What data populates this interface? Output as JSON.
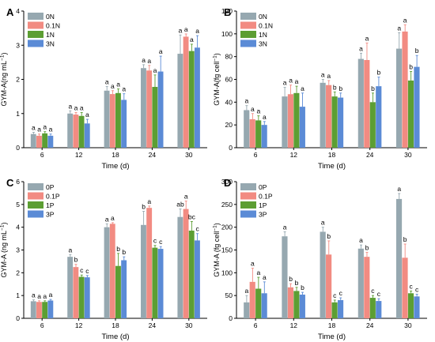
{
  "chart_data": [
    {
      "panel_label": "A",
      "type": "bar",
      "xlabel": "Time (d)",
      "ylabel": "GYM-A(ng mL",
      "ylabel_sup": "−1",
      "ylabel_tail": ")",
      "categories": [
        "6",
        "12",
        "18",
        "24",
        "30"
      ],
      "ylim": [
        0,
        4
      ],
      "yticks": [
        "0",
        "1",
        "2",
        "3",
        "4"
      ],
      "series": [
        {
          "name": "0N",
          "color": "#96a8b0",
          "values": [
            0.4,
            1.0,
            1.67,
            2.33,
            2.75
          ],
          "errors": [
            0.05,
            0.08,
            0.12,
            0.1,
            0.55
          ],
          "letters": [
            "a",
            "a",
            "a",
            "a",
            "a"
          ]
        },
        {
          "name": "0.1N",
          "color": "#f28b82",
          "values": [
            0.35,
            0.97,
            1.57,
            2.26,
            3.25
          ],
          "errors": [
            0.05,
            0.06,
            0.1,
            0.15,
            0.08
          ],
          "letters": [
            "a",
            "a",
            "a",
            "a",
            "a"
          ]
        },
        {
          "name": "1N",
          "color": "#5c9e33",
          "values": [
            0.42,
            0.93,
            1.6,
            1.78,
            2.83
          ],
          "errors": [
            0.05,
            0.1,
            0.12,
            0.35,
            0.2
          ],
          "letters": [
            "a",
            "a",
            "a",
            "a",
            "a"
          ]
        },
        {
          "name": "3N",
          "color": "#5b8bd6",
          "values": [
            0.35,
            0.71,
            1.4,
            2.23,
            2.93
          ],
          "errors": [
            0.05,
            0.12,
            0.18,
            0.45,
            0.35
          ],
          "letters": [
            "a",
            "a",
            "a",
            "a",
            "a"
          ]
        }
      ]
    },
    {
      "panel_label": "B",
      "type": "bar",
      "xlabel": "Time (d)",
      "ylabel": "GYM-A(fg cell",
      "ylabel_sup": "−1",
      "ylabel_tail": ")",
      "categories": [
        "6",
        "12",
        "18",
        "24",
        "30"
      ],
      "ylim": [
        0,
        120
      ],
      "yticks": [
        "0",
        "20",
        "40",
        "60",
        "80",
        "100",
        "120"
      ],
      "series": [
        {
          "name": "0N",
          "color": "#96a8b0",
          "values": [
            33,
            45,
            57,
            78,
            87
          ],
          "errors": [
            4,
            8,
            3,
            5,
            14
          ],
          "letters": [
            "a",
            "a",
            "a",
            "a",
            "a"
          ]
        },
        {
          "name": "0.1N",
          "color": "#f28b82",
          "values": [
            25,
            47,
            55,
            77,
            102
          ],
          "errors": [
            5,
            8,
            4,
            15,
            6
          ],
          "letters": [
            "a",
            "a",
            "a",
            "a",
            "a"
          ]
        },
        {
          "name": "1N",
          "color": "#5c9e33",
          "values": [
            24,
            48,
            45,
            40,
            59
          ],
          "errors": [
            4,
            6,
            4,
            8,
            8
          ],
          "letters": [
            "a",
            "a",
            "b",
            "b",
            "b"
          ]
        },
        {
          "name": "3N",
          "color": "#5b8bd6",
          "values": [
            20,
            36,
            44,
            54,
            71
          ],
          "errors": [
            3,
            12,
            4,
            8,
            10
          ],
          "letters": [
            "a",
            "a",
            "b",
            "b",
            "b"
          ]
        }
      ]
    },
    {
      "panel_label": "C",
      "type": "bar",
      "xlabel": "Time (d)",
      "ylabel": "GYM-A (ng mL",
      "ylabel_sup": "−1",
      "ylabel_tail": ")",
      "categories": [
        "6",
        "12",
        "18",
        "24",
        "30"
      ],
      "ylim": [
        0,
        6
      ],
      "yticks": [
        "0",
        "1",
        "2",
        "3",
        "4",
        "5",
        "6"
      ],
      "series": [
        {
          "name": "0P",
          "color": "#96a8b0",
          "values": [
            0.75,
            2.7,
            4.0,
            4.1,
            4.45
          ],
          "errors": [
            0.06,
            0.1,
            0.15,
            0.6,
            0.35
          ],
          "letters": [
            "a",
            "a",
            "a",
            "b",
            "ab"
          ]
        },
        {
          "name": "0.1P",
          "color": "#f28b82",
          "values": [
            0.72,
            2.25,
            4.15,
            4.85,
            4.8
          ],
          "errors": [
            0.05,
            0.12,
            0.05,
            0.08,
            0.35
          ],
          "letters": [
            "a",
            "b",
            "a",
            "a",
            "a"
          ]
        },
        {
          "name": "1P",
          "color": "#5c9e33",
          "values": [
            0.72,
            1.82,
            2.3,
            3.1,
            3.85
          ],
          "errors": [
            0.05,
            0.08,
            0.55,
            0.1,
            0.4
          ],
          "letters": [
            "a",
            "c",
            "b",
            "c",
            "bc"
          ]
        },
        {
          "name": "3P",
          "color": "#5b8bd6",
          "values": [
            0.78,
            1.8,
            2.55,
            3.05,
            3.42
          ],
          "errors": [
            0.05,
            0.08,
            0.15,
            0.1,
            0.3
          ],
          "letters": [
            "a",
            "c",
            "b",
            "c",
            "c"
          ]
        }
      ]
    },
    {
      "panel_label": "D",
      "type": "bar",
      "xlabel": "Time (d)",
      "ylabel": "GYM-A (fg cell",
      "ylabel_sup": "−1",
      "ylabel_tail": ")",
      "categories": [
        "6",
        "12",
        "18",
        "24",
        "30"
      ],
      "ylim": [
        0,
        300
      ],
      "yticks": [
        "0",
        "50",
        "100",
        "150",
        "200",
        "250",
        "300"
      ],
      "series": [
        {
          "name": "0P",
          "color": "#96a8b0",
          "values": [
            35,
            180,
            190,
            153,
            262
          ],
          "errors": [
            15,
            10,
            10,
            8,
            12
          ],
          "letters": [
            "a",
            "a",
            "a",
            "a",
            "a"
          ]
        },
        {
          "name": "0.1P",
          "color": "#f28b82",
          "values": [
            80,
            68,
            140,
            135,
            133
          ],
          "errors": [
            30,
            8,
            30,
            10,
            30
          ],
          "letters": [
            "a",
            "b",
            "b",
            "b",
            "b"
          ]
        },
        {
          "name": "1P",
          "color": "#5c9e33",
          "values": [
            65,
            60,
            35,
            45,
            55
          ],
          "errors": [
            25,
            8,
            5,
            5,
            5
          ],
          "letters": [
            "a",
            "b",
            "c",
            "c",
            "c"
          ]
        },
        {
          "name": "3P",
          "color": "#5b8bd6",
          "values": [
            55,
            52,
            40,
            38,
            48
          ],
          "errors": [
            25,
            5,
            5,
            5,
            5
          ],
          "letters": [
            "a",
            "b",
            "c",
            "c",
            "c"
          ]
        }
      ]
    }
  ]
}
